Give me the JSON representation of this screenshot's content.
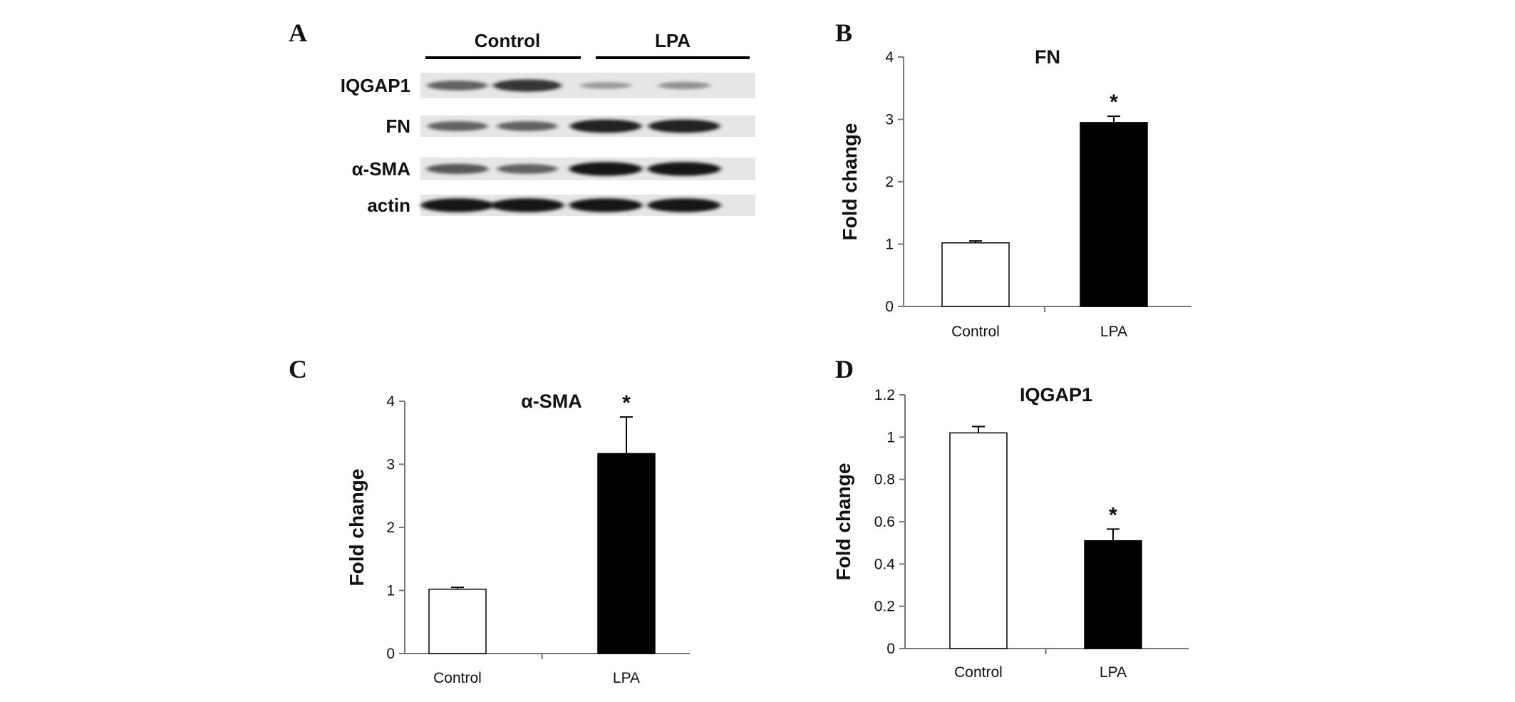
{
  "panels": {
    "A": "A",
    "B": "B",
    "C": "C",
    "D": "D"
  },
  "blot": {
    "groups": [
      "Control",
      "LPA"
    ],
    "rows": [
      {
        "label": "IQGAP1",
        "intensity": [
          0.55,
          0.8,
          0.25,
          0.3
        ]
      },
      {
        "label": "FN",
        "intensity": [
          0.55,
          0.55,
          0.9,
          0.9
        ]
      },
      {
        "label": "α-SMA",
        "intensity": [
          0.6,
          0.55,
          0.95,
          0.95
        ]
      },
      {
        "label": "actin",
        "intensity": [
          0.95,
          0.95,
          0.95,
          0.95
        ]
      }
    ]
  },
  "chart_data": [
    {
      "type": "bar",
      "panel": "B",
      "title": "FN",
      "ylabel": "Fold change",
      "categories": [
        "Control",
        "LPA"
      ],
      "values": [
        1.02,
        2.95
      ],
      "errors": [
        0.03,
        0.1
      ],
      "significance": [
        "",
        "*"
      ],
      "bar_colors": [
        "#ffffff",
        "#000000"
      ],
      "ylim": [
        0,
        4
      ],
      "yticks": [
        "0",
        "1",
        "2",
        "3",
        "4"
      ],
      "grid": false
    },
    {
      "type": "bar",
      "panel": "C",
      "title": "α-SMA",
      "ylabel": "Fold change",
      "categories": [
        "Control",
        "LPA"
      ],
      "values": [
        1.02,
        3.17
      ],
      "errors": [
        0.03,
        0.58
      ],
      "significance": [
        "",
        "*"
      ],
      "bar_colors": [
        "#ffffff",
        "#000000"
      ],
      "ylim": [
        0,
        4
      ],
      "yticks": [
        "0",
        "1",
        "2",
        "3",
        "4"
      ],
      "grid": false
    },
    {
      "type": "bar",
      "panel": "D",
      "title": "IQGAP1",
      "ylabel": "Fold change",
      "categories": [
        "Control",
        "LPA"
      ],
      "values": [
        1.02,
        0.51
      ],
      "errors": [
        0.03,
        0.055
      ],
      "significance": [
        "",
        "*"
      ],
      "bar_colors": [
        "#ffffff",
        "#000000"
      ],
      "ylim": [
        0,
        1.2
      ],
      "yticks": [
        "0",
        "0.2",
        "0.4",
        "0.6",
        "0.8",
        "1",
        "1.2"
      ],
      "grid": false
    }
  ]
}
